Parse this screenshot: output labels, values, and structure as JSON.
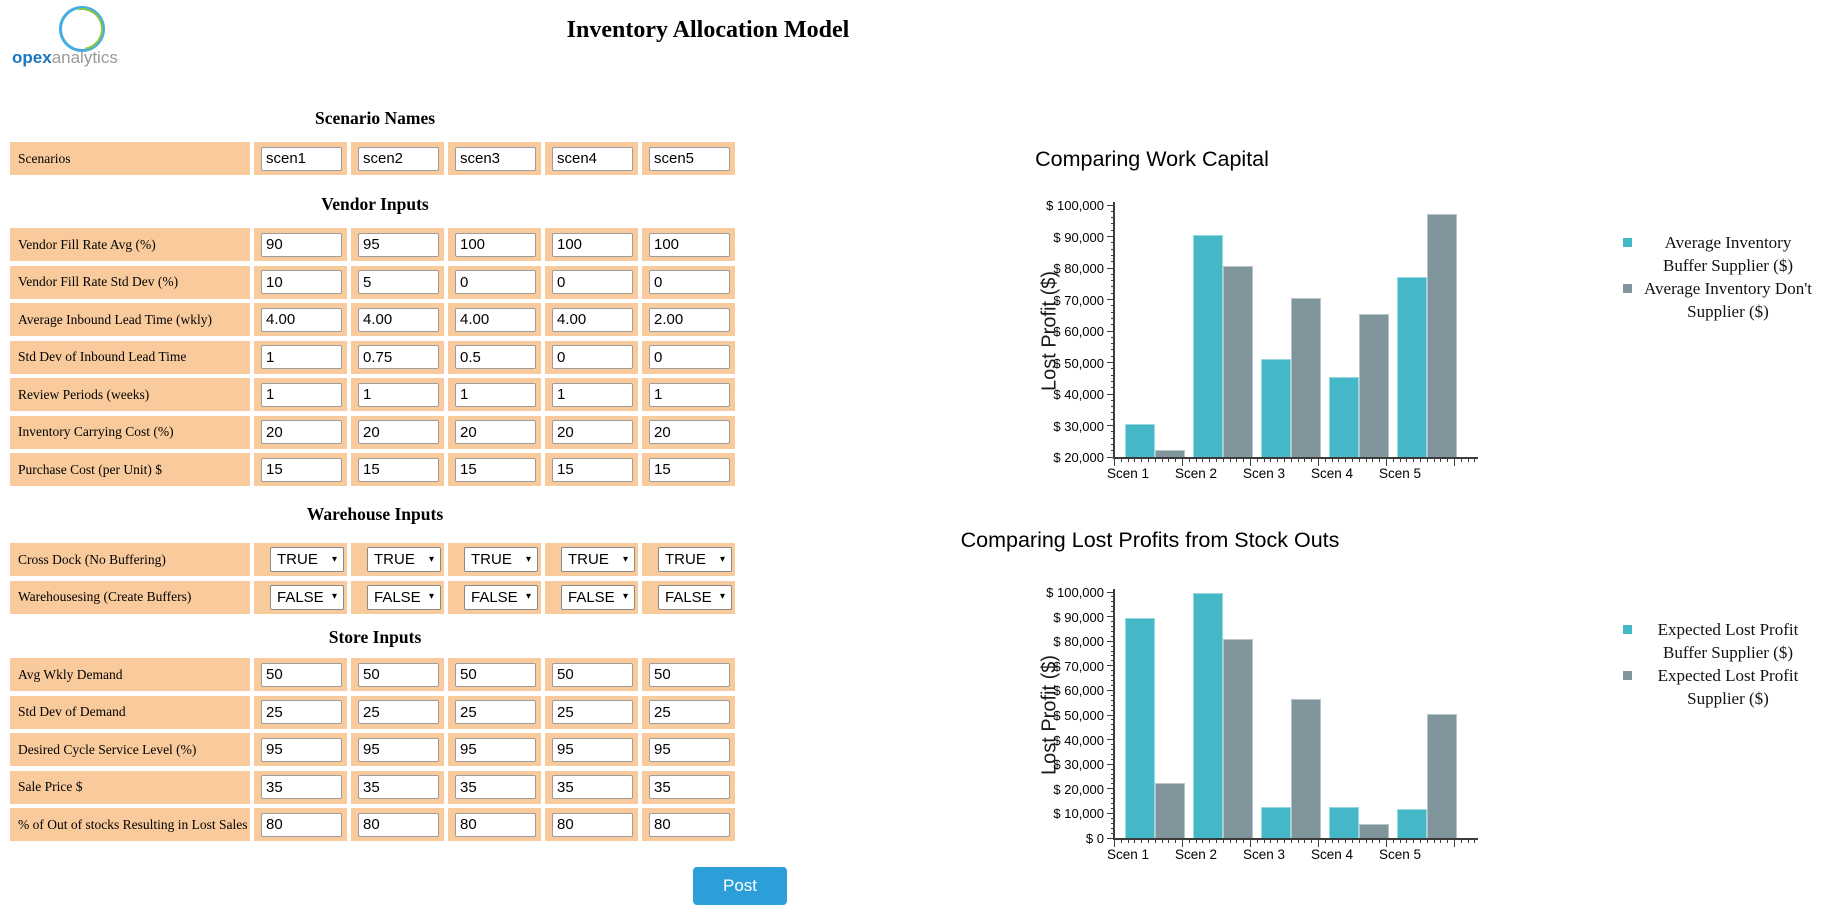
{
  "logo": {
    "bold": "opex",
    "rest": "analytics"
  },
  "page_title": "Inventory Allocation Model",
  "form": {
    "sections": [
      {
        "heading": "Scenario Names",
        "rows": [
          {
            "label": "Scenarios",
            "type": "text",
            "values": [
              "scen1",
              "scen2",
              "scen3",
              "scen4",
              "scen5"
            ]
          }
        ]
      },
      {
        "heading": "Vendor Inputs",
        "rows": [
          {
            "label": "Vendor Fill Rate Avg (%)",
            "type": "text",
            "values": [
              "90",
              "95",
              "100",
              "100",
              "100"
            ]
          },
          {
            "label": "Vendor Fill Rate Std Dev (%)",
            "type": "text",
            "values": [
              "10",
              "5",
              "0",
              "0",
              "0"
            ]
          },
          {
            "label": "Average Inbound Lead Time (wkly)",
            "type": "text",
            "values": [
              "4.00",
              "4.00",
              "4.00",
              "4.00",
              "2.00"
            ]
          },
          {
            "label": "Std Dev of Inbound Lead Time",
            "type": "text",
            "values": [
              "1",
              "0.75",
              "0.5",
              "0",
              "0"
            ]
          },
          {
            "label": "Review Periods (weeks)",
            "type": "text",
            "values": [
              "1",
              "1",
              "1",
              "1",
              "1"
            ]
          },
          {
            "label": "Inventory Carrying Cost (%)",
            "type": "text",
            "values": [
              "20",
              "20",
              "20",
              "20",
              "20"
            ]
          },
          {
            "label": "Purchase Cost (per Unit) $",
            "type": "text",
            "values": [
              "15",
              "15",
              "15",
              "15",
              "15"
            ]
          }
        ]
      },
      {
        "heading": "Warehouse Inputs",
        "rows": [
          {
            "label": "Cross Dock (No Buffering)",
            "type": "select",
            "values": [
              "TRUE",
              "TRUE",
              "TRUE",
              "TRUE",
              "TRUE"
            ]
          },
          {
            "label": "Warehousesing (Create Buffers)",
            "type": "select",
            "values": [
              "FALSE",
              "FALSE",
              "FALSE",
              "FALSE",
              "FALSE"
            ]
          }
        ]
      },
      {
        "heading": "Store Inputs",
        "rows": [
          {
            "label": "Avg Wkly Demand",
            "type": "text",
            "values": [
              "50",
              "50",
              "50",
              "50",
              "50"
            ]
          },
          {
            "label": "Std Dev of Demand",
            "type": "text",
            "values": [
              "25",
              "25",
              "25",
              "25",
              "25"
            ]
          },
          {
            "label": "Desired Cycle Service Level (%)",
            "type": "text",
            "values": [
              "95",
              "95",
              "95",
              "95",
              "95"
            ]
          },
          {
            "label": "Sale Price $",
            "type": "text",
            "values": [
              "35",
              "35",
              "35",
              "35",
              "35"
            ]
          },
          {
            "label": "% of Out of stocks Resulting in Lost Sales",
            "type": "text",
            "values": [
              "80",
              "80",
              "80",
              "80",
              "80"
            ]
          }
        ]
      }
    ],
    "post_label": "Post"
  },
  "colors": {
    "table_cell": "#f8ca9c",
    "post_button": "#2d9fd8",
    "series_teal": "#45b8c8",
    "series_gray": "#80949c"
  },
  "chart_data": [
    {
      "type": "bar",
      "title": "Comparing Work Capital",
      "ylabel": "Lost Profit ($)",
      "categories": [
        "Scen 1",
        "Scen 2",
        "Scen 3",
        "Scen 4",
        "Scen 5"
      ],
      "series": [
        {
          "name": "Average Inventory Buffer Supplier ($)",
          "color": "#45b8c8",
          "values": [
            30500,
            90600,
            51000,
            45400,
            77000
          ]
        },
        {
          "name": "Average Inventory Don't Supplier ($)",
          "color": "#80949c",
          "values": [
            22300,
            80500,
            70400,
            65500,
            97000
          ]
        }
      ],
      "ylim": [
        20000,
        100000
      ],
      "ytick_step": 10000,
      "ytick_labels": [
        "$ 100,000",
        "$ 90,000",
        "$ 80,000",
        "$ 70,000",
        "$ 60,000",
        "$ 50,000",
        "$ 40,000",
        "$ 30,000",
        "$ 20,000"
      ],
      "grid": false,
      "legend_position": "right"
    },
    {
      "type": "bar",
      "title": "Comparing Lost Profits from Stock Outs",
      "ylabel": "Lost Profit ($)",
      "categories": [
        "Scen 1",
        "Scen 2",
        "Scen 3",
        "Scen 4",
        "Scen 5"
      ],
      "series": [
        {
          "name": "Expected Lost Profit Buffer Supplier ($)",
          "color": "#45b8c8",
          "values": [
            89400,
            99600,
            12700,
            12400,
            11800
          ]
        },
        {
          "name": "Expected Lost Profit Supplier ($)",
          "color": "#80949c",
          "values": [
            22300,
            80800,
            56600,
            5500,
            50300
          ]
        }
      ],
      "ylim": [
        0,
        100000
      ],
      "ytick_step": 10000,
      "ytick_labels": [
        "$ 100,000",
        "$ 90,000",
        "$ 80,000",
        "$ 70,000",
        "$ 60,000",
        "$ 50,000",
        "$ 40,000",
        "$ 30,000",
        "$ 20,000",
        "$ 10,000",
        "$ 0"
      ],
      "grid": false,
      "legend_position": "right"
    }
  ]
}
